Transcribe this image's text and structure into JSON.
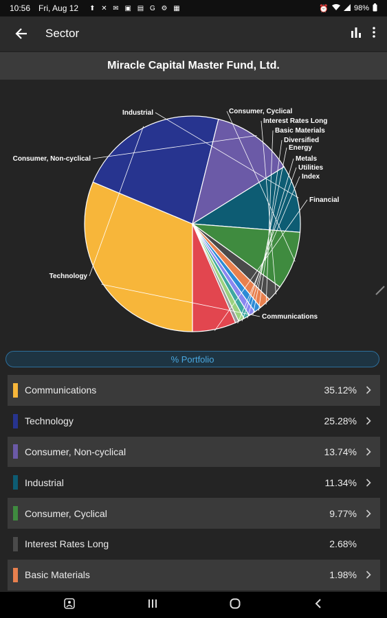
{
  "status": {
    "time": "10:56",
    "date": "Fri, Aug 12",
    "notification_icons": "⬆ ✕ ✉ ▣ ▤ G ⚙ ▦",
    "battery": "98%"
  },
  "app_bar": {
    "title": "Sector",
    "back_icon": "arrow-left-icon",
    "chart_icon": "bar-chart-icon",
    "menu_icon": "more-vert-icon"
  },
  "fund": {
    "name": "Miracle Capital Master Fund, Ltd."
  },
  "tab": {
    "label": "% Portfolio"
  },
  "chart_data": {
    "type": "pie",
    "labels": [
      "Communications",
      "Technology",
      "Consumer, Non-cyclical",
      "Industrial",
      "Consumer, Cyclical",
      "Interest Rates Long",
      "Basic Materials",
      "Diversified",
      "Energy",
      "Metals",
      "Utilities",
      "Index",
      "Financial"
    ],
    "values": [
      35.12,
      25.28,
      13.74,
      11.34,
      9.77,
      2.68,
      1.98,
      1.2,
      1.1,
      1.0,
      1.0,
      0.6,
      7.3
    ],
    "colors": [
      "#f7b63a",
      "#27348f",
      "#6b5aa7",
      "#0d5c73",
      "#3f8b3f",
      "#4a4a4a",
      "#e8804e",
      "#2d8bd6",
      "#8a86f0",
      "#3ea8a0",
      "#9bd17f",
      "#9a9a9a",
      "#e2464f"
    ]
  },
  "rows": [
    {
      "label": "Communications",
      "value": "35.12%",
      "color": "#f7b63a",
      "chevron": true
    },
    {
      "label": "Technology",
      "value": "25.28%",
      "color": "#27348f",
      "chevron": true
    },
    {
      "label": "Consumer, Non-cyclical",
      "value": "13.74%",
      "color": "#6b5aa7",
      "chevron": true
    },
    {
      "label": "Industrial",
      "value": "11.34%",
      "color": "#0d5c73",
      "chevron": true
    },
    {
      "label": "Consumer, Cyclical",
      "value": "9.77%",
      "color": "#3f8b3f",
      "chevron": true
    },
    {
      "label": "Interest Rates Long",
      "value": "2.68%",
      "color": "#4a4a4a",
      "chevron": false
    },
    {
      "label": "Basic Materials",
      "value": "1.98%",
      "color": "#e8804e",
      "chevron": true
    }
  ],
  "nav": {
    "icons": [
      "accessibility-icon",
      "recents-icon",
      "home-icon",
      "back-icon"
    ]
  }
}
